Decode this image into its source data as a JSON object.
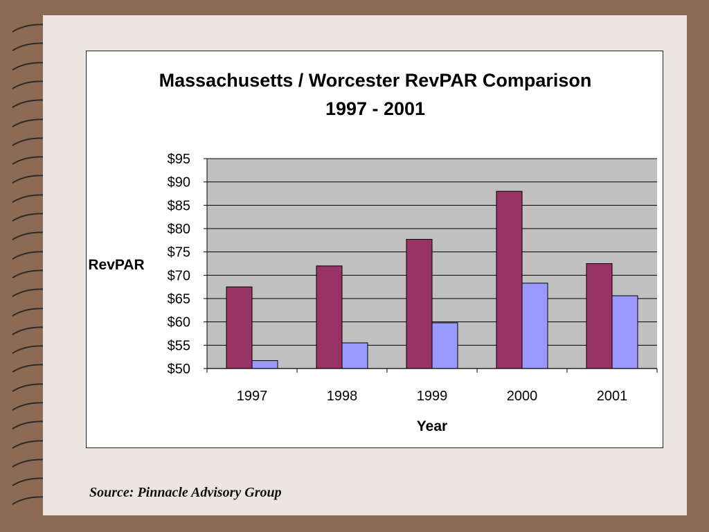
{
  "chart_data": {
    "type": "bar",
    "title": "Massachusetts / Worcester RevPAR Comparison",
    "subtitle": "1997 - 2001",
    "xlabel": "Year",
    "ylabel": "RevPAR",
    "categories": [
      "1997",
      "1998",
      "1999",
      "2000",
      "2001"
    ],
    "series": [
      {
        "values": [
          67.5,
          72.0,
          77.7,
          88.0,
          72.5
        ]
      },
      {
        "values": [
          51.7,
          55.5,
          59.8,
          68.3,
          65.6
        ]
      }
    ],
    "ylim": [
      50,
      95
    ],
    "yticks": [
      50,
      55,
      60,
      65,
      70,
      75,
      80,
      85,
      90,
      95
    ],
    "ytick_labels": [
      "$50",
      "$55",
      "$60",
      "$65",
      "$70",
      "$75",
      "$80",
      "$85",
      "$90",
      "$95"
    ],
    "grid": true,
    "legend": "none"
  },
  "colors": {
    "series_1": "#993366",
    "series_2": "#9999ff",
    "plot_background": "#c0c0c0",
    "page_background": "#8c6a54",
    "paper": "#ece6e3"
  },
  "source": "Source: Pinnacle Advisory Group"
}
